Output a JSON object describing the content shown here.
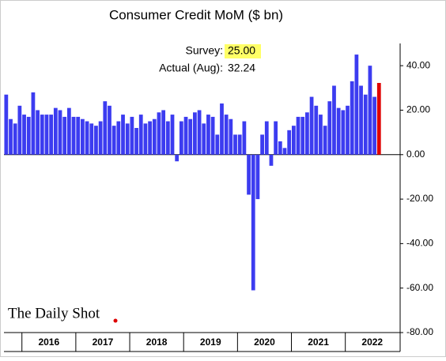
{
  "chart_data": {
    "type": "bar",
    "title": "Consumer Credit MoM ($ bn)",
    "annotations": [
      {
        "label": "Survey:",
        "value": "25.00"
      },
      {
        "label": "Actual (Aug):",
        "value": "32.24"
      }
    ],
    "source": "The Daily Shot",
    "values": [
      27,
      16,
      14,
      22,
      18,
      17,
      28,
      20,
      18,
      18,
      18,
      21,
      20,
      17,
      21,
      17,
      17,
      16,
      15,
      14,
      13,
      15,
      24,
      22,
      13,
      15,
      18,
      14,
      17,
      12,
      18,
      14,
      15,
      16,
      19,
      20,
      15,
      18,
      -3,
      15,
      17,
      16,
      19,
      20,
      14,
      18,
      17,
      9,
      23,
      18,
      16,
      9,
      9,
      15,
      -18,
      -61,
      -20,
      9,
      15,
      -5,
      15,
      6,
      3,
      11,
      13,
      17,
      17,
      19,
      26,
      22,
      18,
      13,
      24,
      31,
      21,
      20,
      22,
      33,
      45,
      31,
      27,
      40,
      26,
      32.24
    ],
    "color": "#3c3cf0",
    "last_color": "#e00000",
    "year_labels": [
      "2016",
      "2017",
      "2018",
      "2019",
      "2020",
      "2021",
      "2022"
    ],
    "ylim": [
      -80,
      50
    ],
    "yticks": [
      {
        "value": -80,
        "label": "-80.00"
      },
      {
        "value": -60,
        "label": "-60.00"
      },
      {
        "value": -40,
        "label": "-40.00"
      },
      {
        "value": -20,
        "label": "-20.00"
      },
      {
        "value": 0,
        "label": "0.00"
      },
      {
        "value": 20,
        "label": "20.00"
      },
      {
        "value": 40,
        "label": "40.00"
      }
    ]
  }
}
